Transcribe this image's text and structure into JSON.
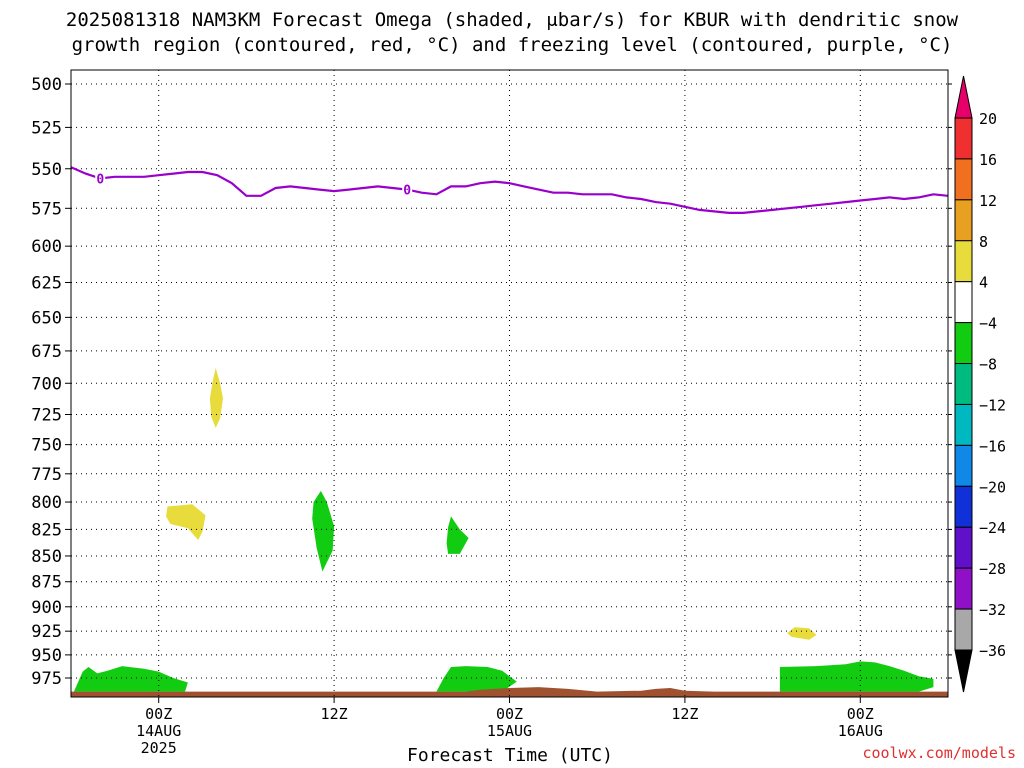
{
  "title_line1": "2025081318 NAM3KM Forecast Omega (shaded, μbar/s) for KBUR with dendritic snow",
  "title_line2": "growth region (contoured, red, °C) and freezing level (contoured, purple, °C)",
  "credit": "coolwx.com/models",
  "chart_data": {
    "type": "contour",
    "xlabel": "Forecast Time (UTC)",
    "x_range_hours": [
      0,
      60
    ],
    "x_ticks": [
      {
        "hour": 6,
        "label": "00Z",
        "sub1": "14AUG",
        "sub2": "2025"
      },
      {
        "hour": 18,
        "label": "12Z",
        "sub1": "",
        "sub2": ""
      },
      {
        "hour": 30,
        "label": "00Z",
        "sub1": "15AUG",
        "sub2": ""
      },
      {
        "hour": 42,
        "label": "12Z",
        "sub1": "",
        "sub2": ""
      },
      {
        "hour": 54,
        "label": "00Z",
        "sub1": "16AUG",
        "sub2": ""
      }
    ],
    "y_axis": {
      "scale": "log-pressure",
      "range_hpa": [
        500,
        990
      ],
      "inverted": true,
      "ticks": [
        500,
        525,
        550,
        575,
        600,
        625,
        650,
        675,
        700,
        725,
        750,
        775,
        800,
        825,
        850,
        875,
        900,
        925,
        950,
        975
      ]
    },
    "grid": true,
    "freezing_level": {
      "color": "#9900cc",
      "label": "0",
      "label_points": [
        2,
        23
      ],
      "points": [
        [
          0,
          549
        ],
        [
          1,
          553
        ],
        [
          2,
          556
        ],
        [
          3,
          555
        ],
        [
          4,
          555
        ],
        [
          5,
          555
        ],
        [
          6,
          554
        ],
        [
          7,
          553
        ],
        [
          8,
          552
        ],
        [
          9,
          552
        ],
        [
          10,
          554
        ],
        [
          11,
          559
        ],
        [
          12,
          567
        ],
        [
          13,
          567
        ],
        [
          14,
          562
        ],
        [
          15,
          561
        ],
        [
          16,
          562
        ],
        [
          17,
          563
        ],
        [
          18,
          564
        ],
        [
          19,
          563
        ],
        [
          20,
          562
        ],
        [
          21,
          561
        ],
        [
          22,
          562
        ],
        [
          23,
          563
        ],
        [
          24,
          565
        ],
        [
          25,
          566
        ],
        [
          26,
          561
        ],
        [
          27,
          561
        ],
        [
          28,
          559
        ],
        [
          29,
          558
        ],
        [
          30,
          559
        ],
        [
          31,
          561
        ],
        [
          32,
          563
        ],
        [
          33,
          565
        ],
        [
          34,
          565
        ],
        [
          35,
          566
        ],
        [
          36,
          566
        ],
        [
          37,
          566
        ],
        [
          38,
          568
        ],
        [
          39,
          569
        ],
        [
          40,
          571
        ],
        [
          41,
          572
        ],
        [
          42,
          574
        ],
        [
          43,
          576
        ],
        [
          44,
          577
        ],
        [
          45,
          578
        ],
        [
          46,
          578
        ],
        [
          47,
          577
        ],
        [
          48,
          576
        ],
        [
          49,
          575
        ],
        [
          50,
          574
        ],
        [
          51,
          573
        ],
        [
          52,
          572
        ],
        [
          53,
          571
        ],
        [
          54,
          570
        ],
        [
          55,
          569
        ],
        [
          56,
          568
        ],
        [
          57,
          569
        ],
        [
          58,
          568
        ],
        [
          59,
          566
        ],
        [
          60,
          567
        ]
      ]
    },
    "omega_regions": [
      {
        "value_class": "4 to 8",
        "color": "#e8dc3c",
        "points": [
          [
            9.9,
            688
          ],
          [
            10.2,
            700
          ],
          [
            10.4,
            712
          ],
          [
            10.2,
            728
          ],
          [
            9.9,
            736
          ],
          [
            9.6,
            727
          ],
          [
            9.5,
            712
          ],
          [
            9.7,
            698
          ]
        ]
      },
      {
        "value_class": "4 to 8",
        "color": "#e8dc3c",
        "points": [
          [
            6.6,
            804
          ],
          [
            8.3,
            802
          ],
          [
            9.2,
            812
          ],
          [
            9.0,
            827
          ],
          [
            8.7,
            835
          ],
          [
            8.0,
            824
          ],
          [
            6.8,
            820
          ],
          [
            6.5,
            813
          ]
        ]
      },
      {
        "value_class": "-8 to -4",
        "color": "#11cc11",
        "points": [
          [
            17.1,
            790
          ],
          [
            17.5,
            800
          ],
          [
            18.0,
            822
          ],
          [
            17.9,
            845
          ],
          [
            17.2,
            865
          ],
          [
            16.8,
            842
          ],
          [
            16.5,
            815
          ],
          [
            16.6,
            800
          ]
        ]
      },
      {
        "value_class": "-8 to -4",
        "color": "#11cc11",
        "points": [
          [
            26.0,
            813
          ],
          [
            26.6,
            825
          ],
          [
            27.2,
            833
          ],
          [
            26.6,
            848
          ],
          [
            25.8,
            848
          ],
          [
            25.7,
            838
          ],
          [
            25.8,
            823
          ]
        ]
      },
      {
        "value_class": "4 to 8",
        "color": "#e8dc3c",
        "points": [
          [
            49.5,
            921
          ],
          [
            50.5,
            922
          ],
          [
            51.0,
            929
          ],
          [
            50.5,
            934
          ],
          [
            49.3,
            931
          ],
          [
            49.0,
            927
          ]
        ]
      },
      {
        "value_class": "-8 to -4",
        "color": "#11cc11",
        "points": [
          [
            0.2,
            990
          ],
          [
            0.8,
            968
          ],
          [
            1.2,
            963
          ],
          [
            1.8,
            970
          ],
          [
            2.5,
            967
          ],
          [
            3.5,
            962
          ],
          [
            5.0,
            965
          ],
          [
            6.0,
            968
          ],
          [
            7.0,
            975
          ],
          [
            8.0,
            980
          ],
          [
            7.8,
            990
          ]
        ]
      },
      {
        "value_class": "-8 to -4",
        "color": "#11cc11",
        "points": [
          [
            25.0,
            990
          ],
          [
            25.5,
            975
          ],
          [
            26.0,
            963
          ],
          [
            27.0,
            962
          ],
          [
            28.5,
            963
          ],
          [
            29.5,
            967
          ],
          [
            30.0,
            973
          ],
          [
            30.5,
            979
          ],
          [
            29.5,
            990
          ]
        ]
      },
      {
        "value_class": "-8 to -4",
        "color": "#11cc11",
        "points": [
          [
            48.5,
            990
          ],
          [
            48.5,
            963
          ],
          [
            51.0,
            962
          ],
          [
            53.0,
            960
          ],
          [
            54.0,
            957
          ],
          [
            55.0,
            958
          ],
          [
            56.0,
            962
          ],
          [
            57.0,
            967
          ],
          [
            58.0,
            973
          ],
          [
            59.0,
            976
          ],
          [
            59.0,
            985
          ],
          [
            58.0,
            990
          ]
        ]
      }
    ],
    "terrain": {
      "color": "#a05230",
      "points": [
        [
          0,
          990
        ],
        [
          27,
          990
        ],
        [
          28,
          988
        ],
        [
          30,
          986
        ],
        [
          32,
          985
        ],
        [
          34,
          987
        ],
        [
          36,
          990
        ],
        [
          39,
          989
        ],
        [
          40,
          987
        ],
        [
          41,
          986
        ],
        [
          42,
          989
        ],
        [
          44,
          990
        ],
        [
          58,
          990
        ],
        [
          60,
          990
        ]
      ]
    },
    "colorbar": {
      "ticks": [
        20,
        16,
        12,
        8,
        4,
        -4,
        -8,
        -12,
        -16,
        -20,
        -24,
        -28,
        -32,
        -36
      ],
      "colors": [
        "#e8006a",
        "#f03030",
        "#f07020",
        "#e8a020",
        "#e8dc3c",
        "#ffffff",
        "#11cc11",
        "#00bb80",
        "#00b8c0",
        "#1088e8",
        "#1030d8",
        "#6010c8",
        "#9010c8",
        "#a8a8a8",
        "#000000"
      ]
    }
  }
}
